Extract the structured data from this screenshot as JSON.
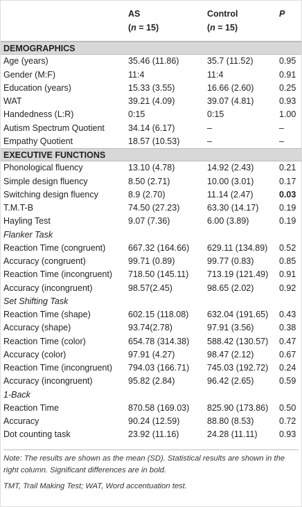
{
  "header": {
    "columns": [
      {
        "line1": "AS",
        "line2": [
          "(",
          "n",
          " = 15)"
        ]
      },
      {
        "line1": "Control",
        "line2": [
          "(",
          "n",
          " = 15)"
        ]
      },
      {
        "line1": "P"
      }
    ]
  },
  "rows": [
    {
      "section": "DEMOGRAPHICS"
    },
    {
      "cells": [
        "Age (years)",
        "35.46 (11.86)",
        "35.7 (11.52)",
        "0.95"
      ]
    },
    {
      "cells": [
        "Gender (M:F)",
        "11:4",
        "11:4",
        "0.91"
      ]
    },
    {
      "cells": [
        "Education (years)",
        "15.33 (3.55)",
        "16.66 (2.60)",
        "0.25"
      ]
    },
    {
      "cells": [
        "WAT",
        "39.21 (4.09)",
        "39.07 (4.81)",
        "0.93"
      ]
    },
    {
      "cells": [
        "Handedness (L:R)",
        "0:15",
        "0:15",
        "1.00"
      ]
    },
    {
      "cells": [
        "Autism Spectrum Quotient",
        "34.14 (6.17)",
        "–",
        "–"
      ]
    },
    {
      "cells": [
        "Empathy Quotient",
        "18.57 (10.53)",
        "–",
        "–"
      ]
    },
    {
      "section": "EXECUTIVE FUNCTIONS"
    },
    {
      "cells": [
        "Phonological fluency",
        "13.10 (4.78)",
        "14.92 (2.43)",
        "0.21"
      ]
    },
    {
      "cells": [
        "Simple design fluency",
        "8.50 (2.71)",
        "10.00 (3.01)",
        "0.17"
      ]
    },
    {
      "cells": [
        "Switching design fluency",
        "8.9 (2.70)",
        "11.14 (2.47)",
        "0.03"
      ],
      "bold_p": true
    },
    {
      "cells": [
        "T.M.T-B",
        "74.50 (27.23)",
        "63.30 (14.17)",
        "0.19"
      ]
    },
    {
      "cells": [
        "Hayling Test",
        "9.07 (7.36)",
        "6.00 (3.89)",
        "0.19"
      ]
    },
    {
      "subheading": "Flanker Task"
    },
    {
      "cells": [
        "Reaction Time (congruent)",
        "667.32 (164.66)",
        "629.11 (134.89)",
        "0.52"
      ]
    },
    {
      "cells": [
        "Accuracy (congruent)",
        "99.71 (0.89)",
        "99.77 (0.83)",
        "0.85"
      ]
    },
    {
      "cells": [
        "Reaction Time (incongruent)",
        "718.50 (145.11)",
        "713.19 (121.49)",
        "0.91"
      ]
    },
    {
      "cells": [
        "Accuracy (incongruent)",
        "98.57(2.45)",
        "98.65 (2.02)",
        "0.92"
      ]
    },
    {
      "subheading": "Set Shifting Task"
    },
    {
      "cells": [
        "Reaction Time (shape)",
        "602.15 (118.08)",
        "632.04 (191.65)",
        "0.43"
      ]
    },
    {
      "cells": [
        "Accuracy (shape)",
        "93.74(2.78)",
        "97.91 (3.56)",
        "0.38"
      ]
    },
    {
      "cells": [
        "Reaction Time (color)",
        "654.78 (314.38)",
        "588.42 (130.57)",
        "0.47"
      ]
    },
    {
      "cells": [
        "Accuracy (color)",
        "97.91 (4.27)",
        "98.47 (2.12)",
        "0.67"
      ]
    },
    {
      "cells": [
        "Reaction Time (incongruent)",
        "794.03 (166.71)",
        "745.03 (192.72)",
        "0.24"
      ]
    },
    {
      "cells": [
        "Accuracy (incongruent)",
        "95.82 (2.84)",
        "96.42 (2.65)",
        "0.59"
      ]
    },
    {
      "subheading": "1-Back"
    },
    {
      "cells": [
        "Reaction Time",
        "870.58 (169.03)",
        "825.90 (173.86)",
        "0.50"
      ]
    },
    {
      "cells": [
        "Accuracy",
        "90.24 (12.59)",
        "88.80 (8.53)",
        "0.72"
      ]
    },
    {
      "cells": [
        "Dot counting task",
        "23.92 (11.16)",
        "24.28 (11.11)",
        "0.93"
      ]
    }
  ],
  "notes": [
    "Note: The results are shown as the mean (SD). Statistical results are shown in the right column. Significant differences are in bold.",
    "TMT, Trail Making Test; WAT, Word accentuation test."
  ]
}
